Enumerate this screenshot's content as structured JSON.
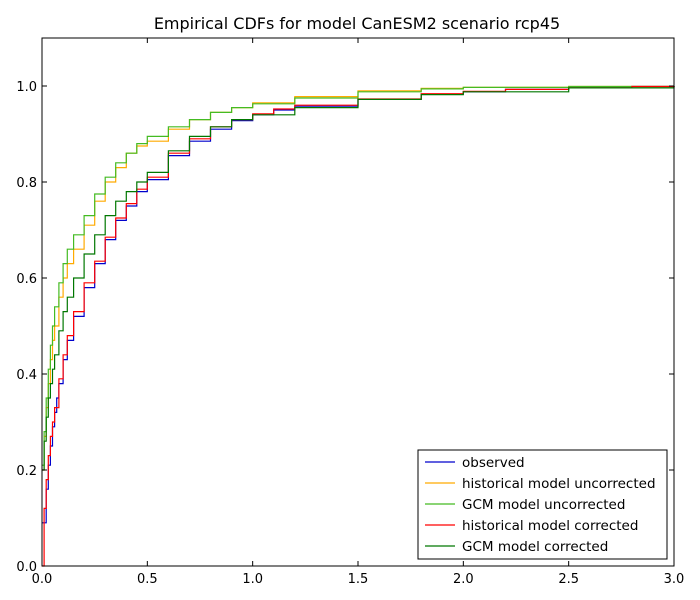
{
  "chart_data": {
    "type": "line",
    "title": "Empirical CDFs for model CanESM2 scenario rcp45",
    "xlabel": "",
    "ylabel": "",
    "xlim": [
      0.0,
      3.0
    ],
    "ylim": [
      0.0,
      1.1
    ],
    "x_ticks": [
      "0.0",
      "0.5",
      "1.0",
      "1.5",
      "2.0",
      "2.5",
      "3.0"
    ],
    "y_ticks": [
      "0.0",
      "0.2",
      "0.4",
      "0.6",
      "0.8",
      "1.0"
    ],
    "grid": false,
    "legend_position": "lower-right",
    "series": [
      {
        "name": "observed",
        "color": "#0000cc",
        "x": [
          0.0,
          0.02,
          0.03,
          0.04,
          0.05,
          0.06,
          0.07,
          0.08,
          0.1,
          0.12,
          0.15,
          0.2,
          0.25,
          0.3,
          0.35,
          0.4,
          0.45,
          0.5,
          0.6,
          0.7,
          0.8,
          0.9,
          1.0,
          1.1,
          1.2,
          1.5,
          1.8,
          2.0,
          2.2,
          2.5,
          2.8,
          3.0
        ],
        "y": [
          0.09,
          0.16,
          0.21,
          0.25,
          0.29,
          0.32,
          0.35,
          0.38,
          0.43,
          0.47,
          0.52,
          0.58,
          0.63,
          0.68,
          0.72,
          0.75,
          0.78,
          0.805,
          0.855,
          0.885,
          0.91,
          0.928,
          0.94,
          0.95,
          0.958,
          0.972,
          0.983,
          0.988,
          0.993,
          0.996,
          0.999,
          1.0
        ]
      },
      {
        "name": "historical model uncorrected",
        "color": "#ffaa00",
        "x": [
          0.0,
          0.01,
          0.02,
          0.03,
          0.04,
          0.05,
          0.06,
          0.08,
          0.1,
          0.12,
          0.15,
          0.2,
          0.25,
          0.3,
          0.35,
          0.4,
          0.45,
          0.5,
          0.6,
          0.7,
          0.8,
          0.9,
          1.0,
          1.2,
          1.5,
          1.8,
          2.0,
          2.5,
          3.0
        ],
        "y": [
          0.2,
          0.27,
          0.33,
          0.38,
          0.43,
          0.47,
          0.5,
          0.56,
          0.6,
          0.63,
          0.66,
          0.71,
          0.76,
          0.8,
          0.83,
          0.86,
          0.875,
          0.885,
          0.91,
          0.93,
          0.945,
          0.955,
          0.965,
          0.978,
          0.99,
          0.995,
          0.997,
          0.999,
          1.0
        ]
      },
      {
        "name": "GCM model uncorrected",
        "color": "#44bb22",
        "x": [
          0.0,
          0.01,
          0.02,
          0.03,
          0.04,
          0.05,
          0.06,
          0.08,
          0.1,
          0.12,
          0.15,
          0.2,
          0.25,
          0.3,
          0.35,
          0.4,
          0.45,
          0.5,
          0.6,
          0.7,
          0.8,
          0.9,
          1.0,
          1.2,
          1.5,
          1.8,
          2.0,
          2.5,
          3.0
        ],
        "y": [
          0.21,
          0.28,
          0.35,
          0.41,
          0.46,
          0.5,
          0.54,
          0.59,
          0.63,
          0.66,
          0.69,
          0.73,
          0.775,
          0.81,
          0.84,
          0.86,
          0.88,
          0.895,
          0.915,
          0.93,
          0.945,
          0.955,
          0.963,
          0.975,
          0.988,
          0.994,
          0.997,
          0.999,
          1.0
        ]
      },
      {
        "name": "historical model corrected",
        "color": "#ff0000",
        "x": [
          0.0,
          0.01,
          0.02,
          0.03,
          0.04,
          0.05,
          0.06,
          0.08,
          0.1,
          0.12,
          0.15,
          0.2,
          0.25,
          0.3,
          0.35,
          0.4,
          0.45,
          0.5,
          0.6,
          0.7,
          0.8,
          0.9,
          1.0,
          1.1,
          1.2,
          1.5,
          1.8,
          2.0,
          2.2,
          2.5,
          2.8,
          3.0
        ],
        "y": [
          0.0,
          0.12,
          0.18,
          0.23,
          0.27,
          0.3,
          0.33,
          0.39,
          0.44,
          0.48,
          0.53,
          0.59,
          0.635,
          0.685,
          0.725,
          0.755,
          0.785,
          0.81,
          0.86,
          0.89,
          0.915,
          0.93,
          0.942,
          0.952,
          0.96,
          0.973,
          0.984,
          0.989,
          0.993,
          0.996,
          0.999,
          1.0
        ]
      },
      {
        "name": "GCM model corrected",
        "color": "#007700",
        "x": [
          0.0,
          0.01,
          0.02,
          0.03,
          0.04,
          0.05,
          0.06,
          0.08,
          0.1,
          0.12,
          0.15,
          0.2,
          0.25,
          0.3,
          0.35,
          0.4,
          0.45,
          0.5,
          0.6,
          0.7,
          0.8,
          0.9,
          1.0,
          1.2,
          1.5,
          1.8,
          2.0,
          2.5,
          3.0
        ],
        "y": [
          0.2,
          0.26,
          0.31,
          0.35,
          0.38,
          0.41,
          0.44,
          0.49,
          0.53,
          0.56,
          0.6,
          0.65,
          0.69,
          0.73,
          0.76,
          0.78,
          0.8,
          0.82,
          0.865,
          0.895,
          0.915,
          0.93,
          0.94,
          0.955,
          0.972,
          0.982,
          0.988,
          0.996,
          1.0
        ]
      }
    ]
  }
}
